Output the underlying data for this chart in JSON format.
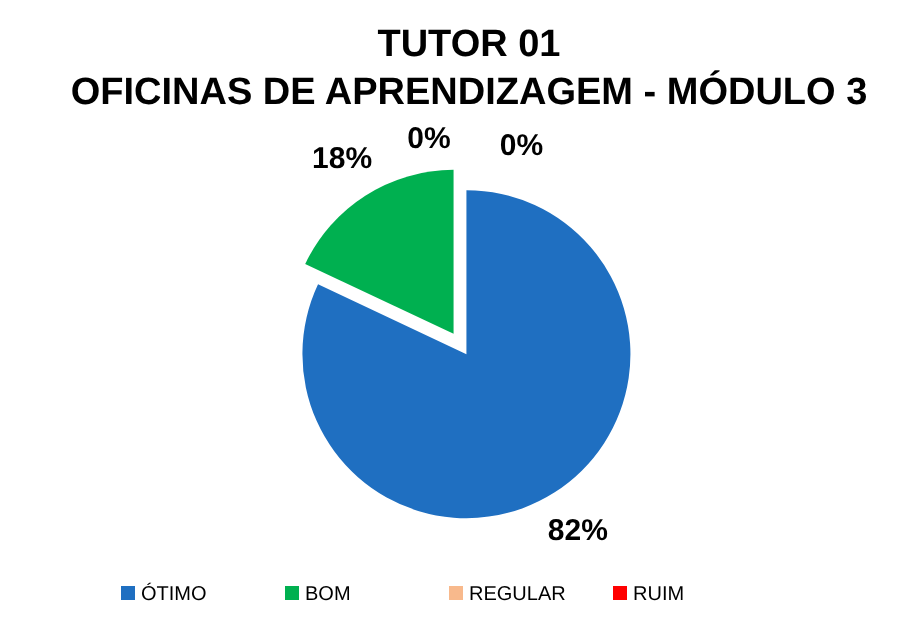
{
  "chart_data": {
    "type": "pie",
    "title": "TUTOR 01\nOFICINAS DE APRENDIZAGEM - MÓDULO 3",
    "categories": [
      "ÓTIMO",
      "BOM",
      "REGULAR",
      "RUIM"
    ],
    "values": [
      82,
      18,
      0,
      0
    ],
    "value_labels": [
      "82%",
      "18%",
      "0%",
      "0%"
    ],
    "colors": [
      "#1f6fc1",
      "#00b050",
      "#f8b98c",
      "#ff0000"
    ],
    "legend": "bottom"
  }
}
